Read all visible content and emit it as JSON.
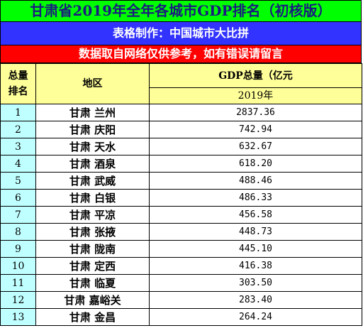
{
  "header": {
    "title": "甘肃省2019年全年各城市GDP排名（初核版）",
    "maker": "表格制作：中国城市大比拼",
    "notice": "数据取自网络仅供参考，如有错误请留言"
  },
  "table": {
    "rank_header_line1": "总量",
    "rank_header_line2": "排名",
    "region_header": "地区",
    "gdp_header": "GDP总量（亿元",
    "year_header": "2019年",
    "rows": [
      {
        "rank": "1",
        "region": "甘肃 兰州",
        "gdp": "2837.36"
      },
      {
        "rank": "2",
        "region": "甘肃 庆阳",
        "gdp": "742.94"
      },
      {
        "rank": "3",
        "region": "甘肃 天水",
        "gdp": "632.67"
      },
      {
        "rank": "4",
        "region": "甘肃 酒泉",
        "gdp": "618.20"
      },
      {
        "rank": "5",
        "region": "甘肃 武威",
        "gdp": "488.46"
      },
      {
        "rank": "6",
        "region": "甘肃 白银",
        "gdp": "486.33"
      },
      {
        "rank": "7",
        "region": "甘肃 平凉",
        "gdp": "456.58"
      },
      {
        "rank": "8",
        "region": "甘肃 张掖",
        "gdp": "448.73"
      },
      {
        "rank": "9",
        "region": "甘肃 陇南",
        "gdp": "445.10"
      },
      {
        "rank": "10",
        "region": "甘肃 定西",
        "gdp": "416.38"
      },
      {
        "rank": "11",
        "region": "甘肃 临夏",
        "gdp": "303.50"
      },
      {
        "rank": "12",
        "region": "甘肃 嘉峪关",
        "gdp": "283.40"
      },
      {
        "rank": "13",
        "region": "甘肃 金昌",
        "gdp": "264.24"
      }
    ]
  }
}
